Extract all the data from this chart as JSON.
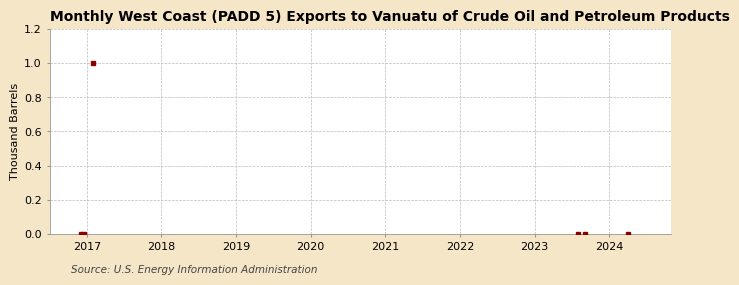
{
  "title": "Monthly West Coast (PADD 5) Exports to Vanuatu of Crude Oil and Petroleum Products",
  "ylabel": "Thousand Barrels",
  "source": "Source: U.S. Energy Information Administration",
  "fig_background_color": "#f5e6c8",
  "plot_background_color": "#ffffff",
  "grid_color": "#bbbbbb",
  "marker_color": "#8b0000",
  "xlim": [
    2016.5,
    2024.83
  ],
  "ylim": [
    0,
    1.2
  ],
  "yticks": [
    0.0,
    0.2,
    0.4,
    0.6,
    0.8,
    1.0,
    1.2
  ],
  "xticks": [
    2017,
    2018,
    2019,
    2020,
    2021,
    2022,
    2023,
    2024
  ],
  "data_x": [
    2016.92,
    2016.96,
    2017.08,
    2023.58,
    2023.67,
    2024.25
  ],
  "data_y": [
    0.0,
    0.0,
    1.0,
    0.0,
    0.0,
    0.0
  ],
  "title_fontsize": 10,
  "label_fontsize": 8,
  "tick_fontsize": 8,
  "source_fontsize": 7.5
}
